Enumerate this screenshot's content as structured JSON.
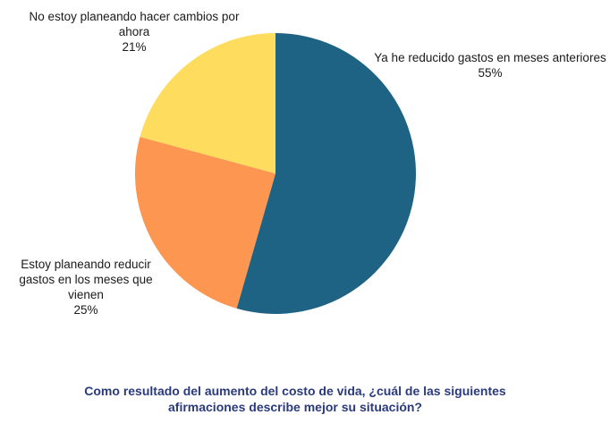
{
  "chart_data": {
    "type": "pie",
    "title": "",
    "slices": [
      {
        "label_lines": [
          "Ya he reducido gastos en meses anteriores"
        ],
        "percent_label": "55%",
        "value": 55,
        "color": "#1e6383"
      },
      {
        "label_lines": [
          "Estoy planeando reducir",
          "gastos en los meses que",
          "vienen"
        ],
        "percent_label": "25%",
        "value": 25,
        "color": "#fd9650"
      },
      {
        "label_lines": [
          "No estoy planeando hacer cambios por",
          "ahora"
        ],
        "percent_label": "21%",
        "value": 21,
        "color": "#fedd5e"
      }
    ],
    "start": "12 o'clock",
    "direction": "clockwise",
    "legend": "none (direct labels)"
  },
  "question": {
    "line1": "Como resultado del aumento del costo de vida, ¿cuál de las siguientes",
    "line2": "afirmaciones describe mejor su situación?"
  }
}
